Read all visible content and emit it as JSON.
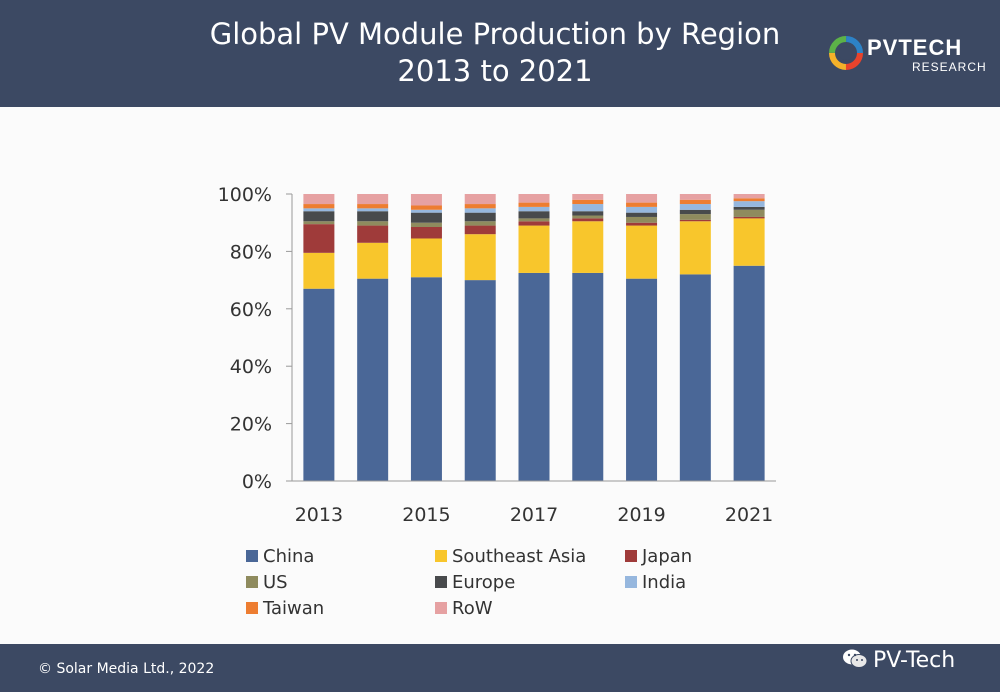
{
  "header": {
    "title_line1": "Global PV Module Production by Region",
    "title_line2": "2013 to 2021"
  },
  "logo": {
    "name": "PVTECH",
    "sub": "RESEARCH"
  },
  "chart_data": {
    "type": "bar",
    "stacked": true,
    "categories": [
      "2013",
      "2014",
      "2015",
      "2016",
      "2017",
      "2018",
      "2019",
      "2020",
      "2021"
    ],
    "x_tick_labels": [
      "2013",
      "",
      "2015",
      "",
      "2017",
      "",
      "2019",
      "",
      "2021"
    ],
    "y_tick_labels": [
      "0%",
      "20%",
      "40%",
      "60%",
      "80%",
      "100%"
    ],
    "ylim": [
      0,
      100
    ],
    "grid": false,
    "legend_position": "bottom",
    "series": [
      {
        "name": "China",
        "color": "#4a6797",
        "values": [
          67,
          70.5,
          71,
          70,
          72.5,
          72.5,
          70.5,
          72,
          75
        ]
      },
      {
        "name": "Southeast Asia",
        "color": "#f8c62c",
        "values": [
          12.5,
          12.5,
          13.5,
          16,
          16.5,
          18,
          18.5,
          18.5,
          16.5
        ]
      },
      {
        "name": "Japan",
        "color": "#9f3b3a",
        "values": [
          10,
          6,
          4,
          3,
          1.5,
          1,
          1,
          0.5,
          0.5
        ]
      },
      {
        "name": "US",
        "color": "#8f8b5e",
        "values": [
          1,
          1.5,
          1.5,
          1.5,
          1,
          1,
          2,
          2,
          2.5
        ]
      },
      {
        "name": "Europe",
        "color": "#484a4c",
        "values": [
          3.5,
          3.5,
          3.5,
          3,
          2.5,
          1.5,
          1.5,
          1.5,
          1
        ]
      },
      {
        "name": "India",
        "color": "#96b7de",
        "values": [
          1,
          1,
          1,
          1.5,
          1.5,
          2.5,
          2,
          2,
          2
        ]
      },
      {
        "name": "Taiwan",
        "color": "#ed7d31",
        "values": [
          1.5,
          1.5,
          1.5,
          1.5,
          1.5,
          1.5,
          1.5,
          1.5,
          1
        ]
      },
      {
        "name": "RoW",
        "color": "#e6a1a2",
        "values": [
          3.5,
          3.5,
          4,
          3.5,
          3,
          2,
          3,
          2,
          1.5
        ]
      }
    ]
  },
  "footer": {
    "copyright": "© Solar Media Ltd., 2022",
    "wechat_account": "PV-Tech"
  }
}
